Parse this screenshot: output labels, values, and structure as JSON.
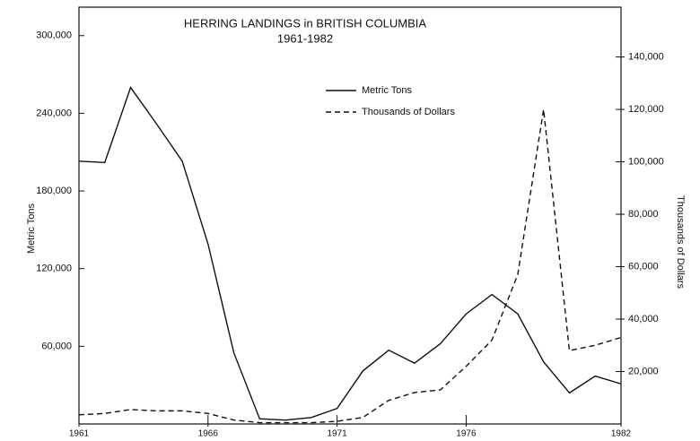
{
  "chart_data": {
    "type": "line",
    "title": "HERRING LANDINGS in BRITISH COLUMBIA",
    "subtitle": "1961-1982",
    "ylabel": "Metric Tons",
    "y2label": "Thousands of Dollars",
    "x": [
      1961,
      1962,
      1963,
      1964,
      1965,
      1966,
      1967,
      1968,
      1969,
      1970,
      1971,
      1972,
      1973,
      1974,
      1975,
      1976,
      1977,
      1978,
      1979,
      1980,
      1981,
      1982
    ],
    "series": [
      {
        "name": "Metric Tons",
        "color": "#111111",
        "dash": "solid",
        "values": [
          203000,
          202000,
          260000,
          232000,
          203000,
          139000,
          55000,
          4000,
          3000,
          5000,
          12000,
          41000,
          57000,
          47000,
          62000,
          85000,
          100000,
          85000,
          48000,
          24000,
          37000,
          31000
        ]
      },
      {
        "name": "Thousands of Dollars",
        "color": "#111111",
        "dash": "dashed",
        "axis": "y2",
        "values": [
          3500,
          4000,
          5500,
          5000,
          5000,
          4000,
          1500,
          500,
          500,
          500,
          1000,
          2500,
          9000,
          12000,
          13000,
          22000,
          32000,
          57000,
          120000,
          28000,
          30000,
          33000
        ]
      }
    ],
    "xlim": [
      1961,
      1982
    ],
    "xticks": [
      1961,
      1966,
      1971,
      1976,
      1982
    ],
    "ylim": [
      0,
      322000
    ],
    "yticks": [
      {
        "value": 60000,
        "label": "60,000"
      },
      {
        "value": 120000,
        "label": "120,000"
      },
      {
        "value": 180000,
        "label": "180,000"
      },
      {
        "value": 240000,
        "label": "240,000"
      },
      {
        "value": 300000,
        "label": "300,000"
      }
    ],
    "y2lim": [
      0,
      159000
    ],
    "y2ticks": [
      {
        "value": 20000,
        "label": "20,000"
      },
      {
        "value": 40000,
        "label": "40,000"
      },
      {
        "value": 60000,
        "label": "60,000"
      },
      {
        "value": 80000,
        "label": "80,000"
      },
      {
        "value": 100000,
        "label": "100,000"
      },
      {
        "value": 120000,
        "label": "120,000"
      },
      {
        "value": 140000,
        "label": "140,000"
      }
    ],
    "legend": "upper center"
  }
}
